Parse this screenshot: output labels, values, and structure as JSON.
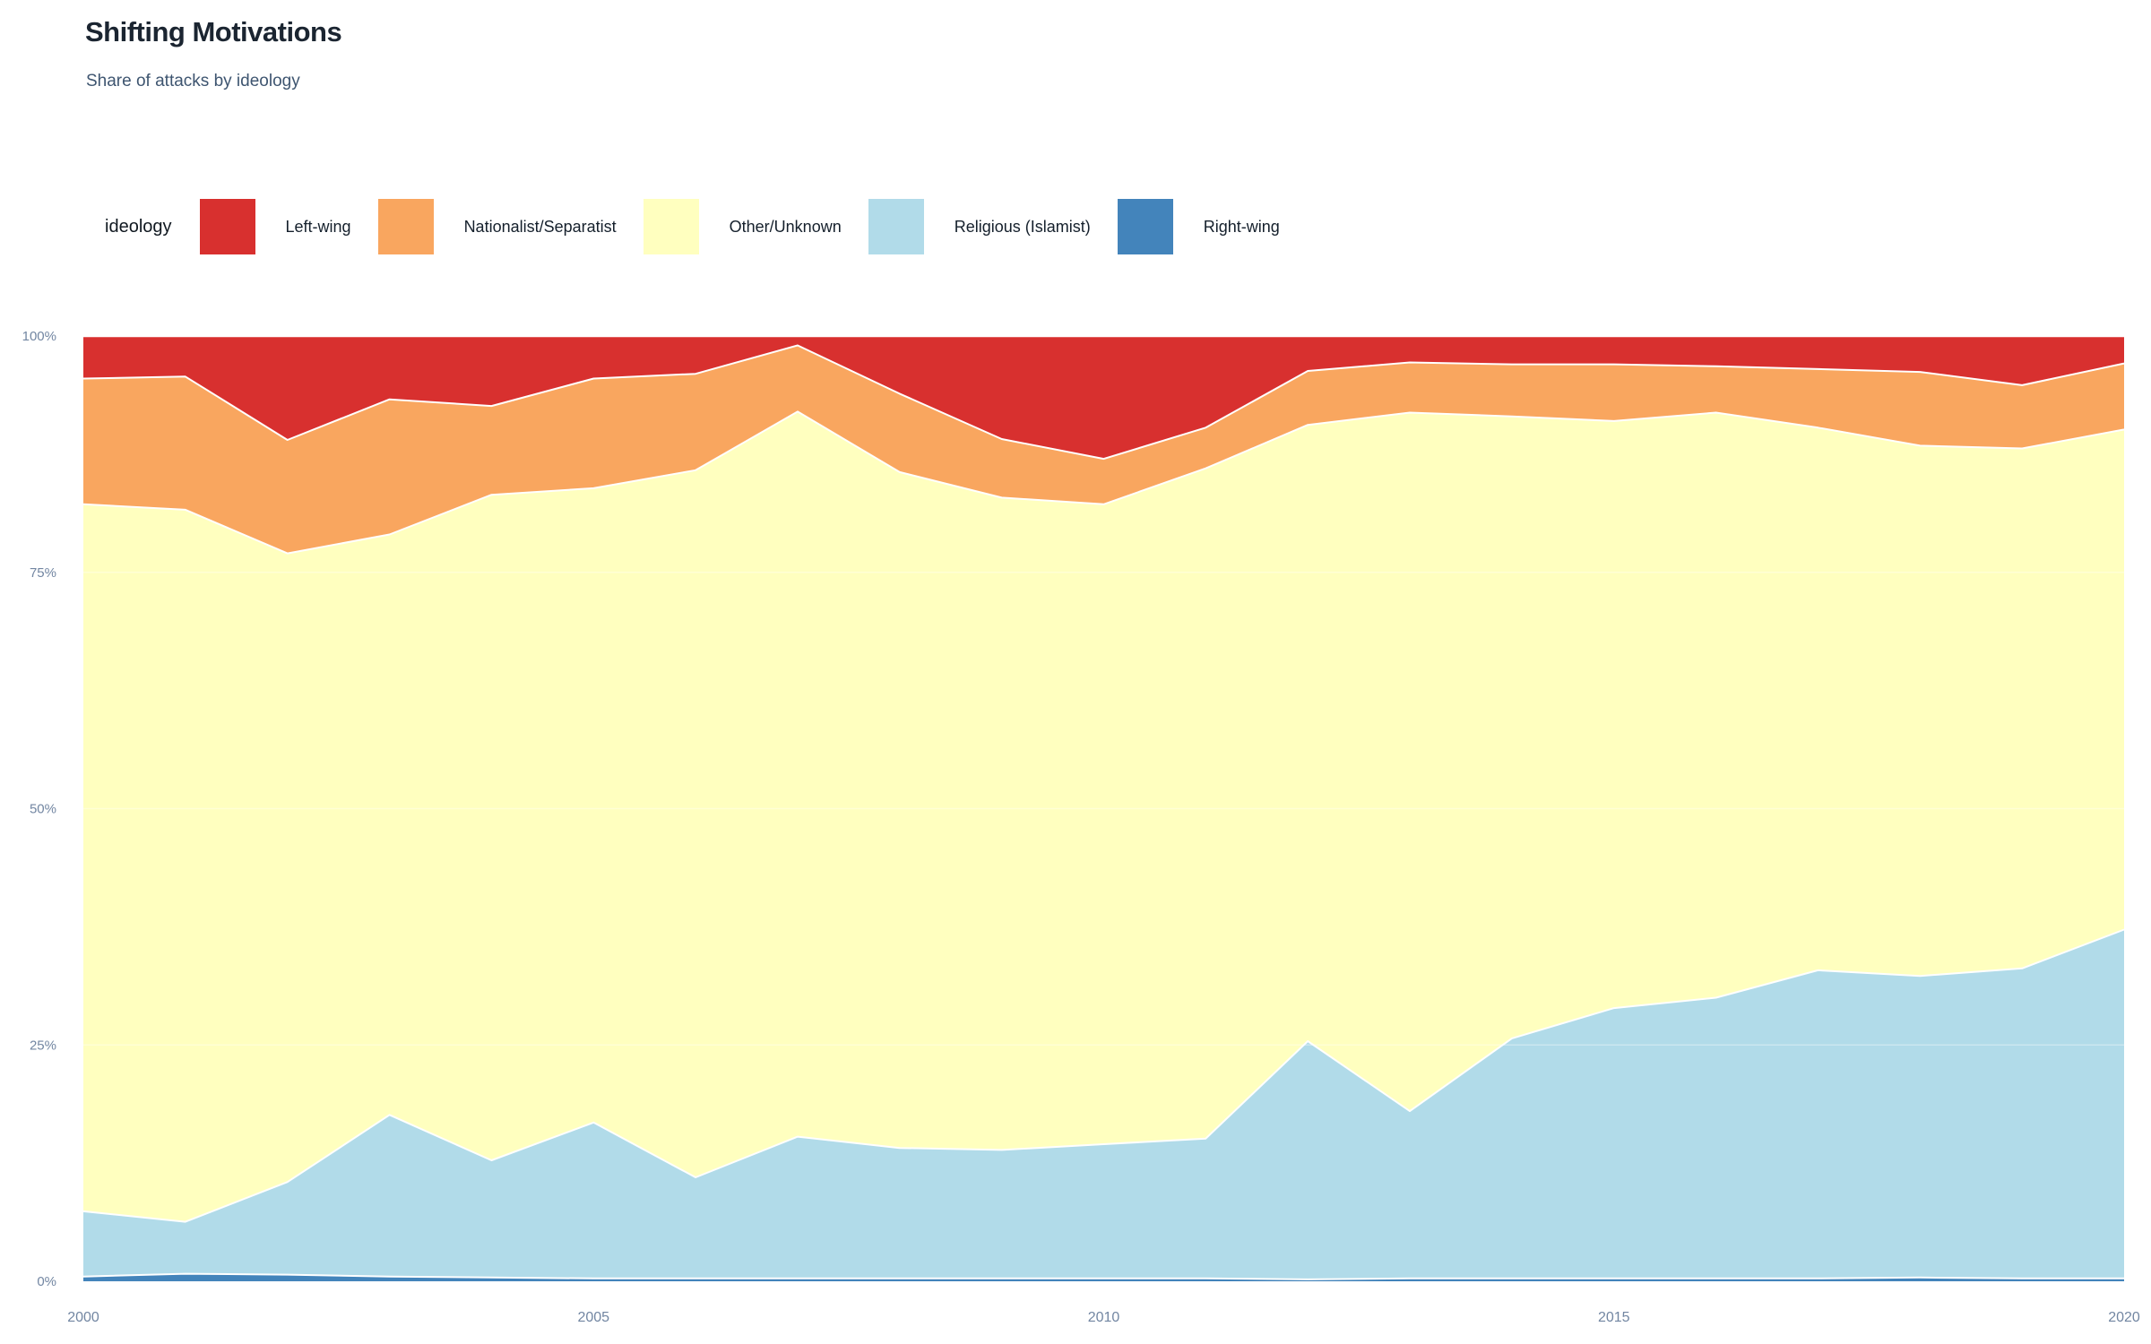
{
  "header": {
    "title": "Shifting Motivations",
    "subtitle": "Share of attacks by ideology"
  },
  "legend": {
    "title": "ideology",
    "items": [
      {
        "label": "Left-wing",
        "color": "#d8302f"
      },
      {
        "label": "Nationalist/Separatist",
        "color": "#f9a65f"
      },
      {
        "label": "Other/Unknown",
        "color": "#ffffbf"
      },
      {
        "label": "Religious (Islamist)",
        "color": "#b1dbe9"
      },
      {
        "label": "Right-wing",
        "color": "#4384bb"
      }
    ]
  },
  "chart_data": {
    "type": "area",
    "stacked": true,
    "normalized": true,
    "title": "Shifting Motivations",
    "subtitle": "Share of attacks by ideology",
    "xlabel": "",
    "ylabel": "",
    "ylim": [
      0,
      100
    ],
    "grid": "faint horizontal lines at 25/50/75",
    "legend_position": "top-left",
    "x": [
      2000,
      2001,
      2002,
      2003,
      2004,
      2005,
      2006,
      2007,
      2008,
      2009,
      2010,
      2011,
      2012,
      2013,
      2014,
      2015,
      2016,
      2017,
      2018,
      2019,
      2020
    ],
    "x_tick_labels": [
      "2000",
      "2005",
      "2010",
      "2015",
      "2020"
    ],
    "x_tick_values": [
      2000,
      2005,
      2010,
      2015,
      2020
    ],
    "y_tick_labels": [
      "0%",
      "25%",
      "50%",
      "75%",
      "100%"
    ],
    "y_tick_values": [
      0,
      25,
      50,
      75,
      100
    ],
    "stack_order_bottom_to_top": [
      "Right-wing",
      "Religious (Islamist)",
      "Other/Unknown",
      "Nationalist/Separatist",
      "Left-wing"
    ],
    "series": [
      {
        "name": "Right-wing",
        "color": "#4384bb",
        "values": [
          0.5,
          0.8,
          0.7,
          0.5,
          0.4,
          0.3,
          0.3,
          0.3,
          0.3,
          0.3,
          0.3,
          0.3,
          0.2,
          0.3,
          0.3,
          0.3,
          0.3,
          0.3,
          0.4,
          0.3,
          0.3
        ]
      },
      {
        "name": "Religious (Islamist)",
        "color": "#b1dbe9",
        "values": [
          6.9,
          5.5,
          9.8,
          17.1,
          12.4,
          16.5,
          10.7,
          15.0,
          13.8,
          13.6,
          14.2,
          14.8,
          25.2,
          17.7,
          25.4,
          28.6,
          29.7,
          32.6,
          31.9,
          32.8,
          36.9
        ]
      },
      {
        "name": "Other/Unknown",
        "color": "#ffffbf",
        "values": [
          74.8,
          75.4,
          66.5,
          61.4,
          70.4,
          67.1,
          74.8,
          76.7,
          71.5,
          69.0,
          67.7,
          70.9,
          65.2,
          73.9,
          65.8,
          62.1,
          61.9,
          57.4,
          56.1,
          55.0,
          52.9
        ]
      },
      {
        "name": "Nationalist/Separatist",
        "color": "#f9a65f",
        "values": [
          13.3,
          14.1,
          12.0,
          14.3,
          9.4,
          11.6,
          10.2,
          7.0,
          8.3,
          6.2,
          4.8,
          4.3,
          5.7,
          5.3,
          5.5,
          6.0,
          4.9,
          6.2,
          7.8,
          6.7,
          7.0
        ]
      },
      {
        "name": "Left-wing",
        "color": "#d8302f",
        "values": [
          4.5,
          4.3,
          11.0,
          6.7,
          7.4,
          4.5,
          4.0,
          1.0,
          6.1,
          10.9,
          13.0,
          9.7,
          3.7,
          2.8,
          3.0,
          3.0,
          3.2,
          3.5,
          3.8,
          5.2,
          2.9
        ]
      }
    ]
  }
}
